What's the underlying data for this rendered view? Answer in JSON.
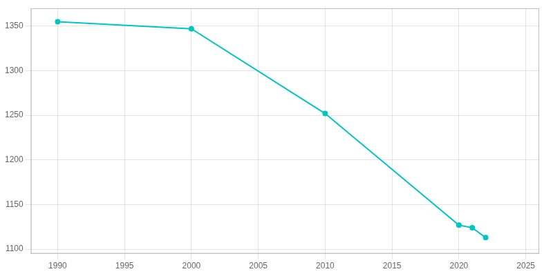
{
  "chart_data": {
    "type": "line",
    "x": [
      1990,
      2000,
      2010,
      2020,
      2021,
      2022
    ],
    "values": [
      1355,
      1347,
      1252,
      1127,
      1124,
      1113
    ],
    "color": "#00C5C5",
    "marker": "circle",
    "xlim": [
      1988,
      2026
    ],
    "xticks": [
      1990,
      1995,
      2000,
      2005,
      2010,
      2015,
      2020,
      2025
    ],
    "ylim": [
      1095,
      1370
    ],
    "yticks": [
      1100,
      1150,
      1200,
      1250,
      1300,
      1350
    ],
    "grid": true
  }
}
